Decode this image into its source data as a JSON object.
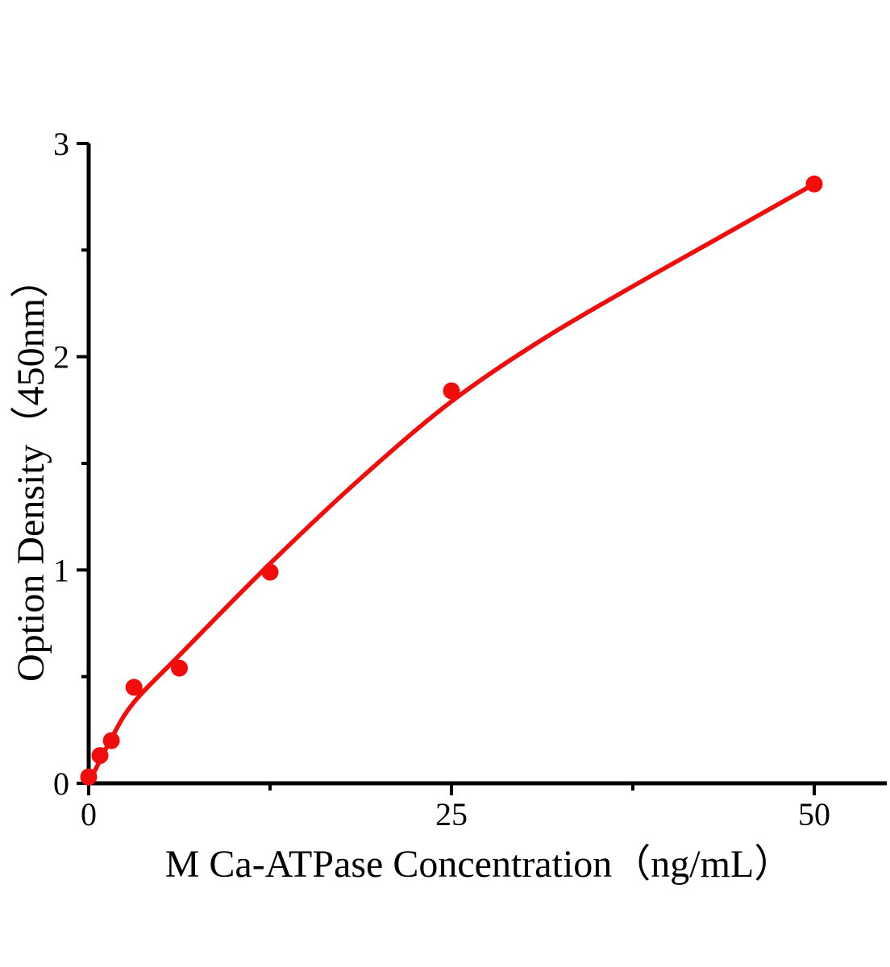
{
  "chart_data": {
    "type": "scatter",
    "title": "",
    "xlabel": "M Ca-ATPase Concentration（ng/mL）",
    "ylabel": "Option Density（450nm）",
    "xlim": [
      0,
      55
    ],
    "ylim": [
      0,
      3
    ],
    "grid": false,
    "legend": "none",
    "x_ticks": {
      "major": [
        0,
        25,
        50
      ],
      "labels": [
        "0",
        "25",
        "50"
      ],
      "minor": [
        12.5,
        37.5
      ]
    },
    "y_ticks": {
      "major": [
        0,
        1,
        2,
        3
      ],
      "labels": [
        "0",
        "1",
        "2",
        "3"
      ],
      "minor": [
        0.5,
        1.5,
        2.5
      ]
    },
    "points": [
      [
        0,
        0.03
      ],
      [
        0.78,
        0.13
      ],
      [
        1.56,
        0.2
      ],
      [
        3.12,
        0.45
      ],
      [
        6.25,
        0.54
      ],
      [
        12.5,
        0.99
      ],
      [
        25,
        1.84
      ],
      [
        50,
        2.81
      ]
    ],
    "fit_curve": [
      [
        0,
        0.0
      ],
      [
        1.56,
        0.21
      ],
      [
        3.12,
        0.38
      ],
      [
        6.25,
        0.6
      ],
      [
        12.5,
        1.03
      ],
      [
        18.75,
        1.43
      ],
      [
        25,
        1.79
      ],
      [
        31.25,
        2.08
      ],
      [
        37.5,
        2.33
      ],
      [
        43.75,
        2.57
      ],
      [
        50,
        2.81
      ]
    ],
    "colors": {
      "curve": "#f20d0d",
      "points": "#f20d0d",
      "axis": "#000000",
      "background": "#ffffff"
    }
  }
}
